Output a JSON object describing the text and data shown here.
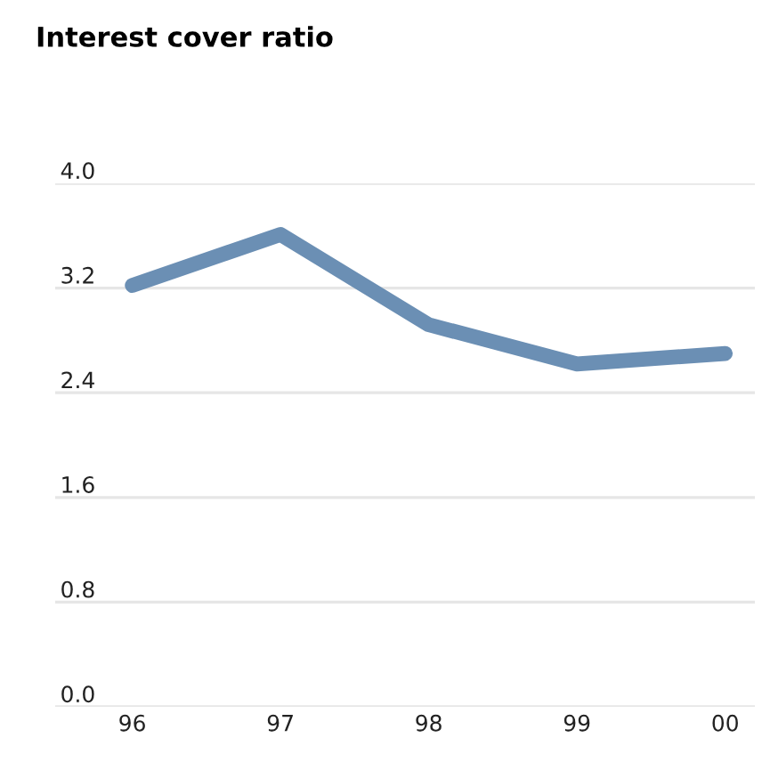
{
  "chart_data": {
    "type": "line",
    "title": "Interest cover ratio",
    "categories": [
      "96",
      "97",
      "98",
      "99",
      "00"
    ],
    "series": [
      {
        "color": "#6b8fb4",
        "values": [
          3.22,
          3.61,
          2.92,
          2.62,
          2.7
        ]
      }
    ],
    "ylim": [
      0.0,
      4.0
    ],
    "yticks": [
      {
        "value": 0.0,
        "label": "0.0"
      },
      {
        "value": 0.8,
        "label": "0.8"
      },
      {
        "value": 1.6,
        "label": "1.6"
      },
      {
        "value": 2.4,
        "label": "2.4"
      },
      {
        "value": 3.2,
        "label": "3.2"
      },
      {
        "value": 4.0,
        "label": "4.0"
      }
    ],
    "grid": "y",
    "marker": "none",
    "line_style": "solid",
    "legend": false
  }
}
